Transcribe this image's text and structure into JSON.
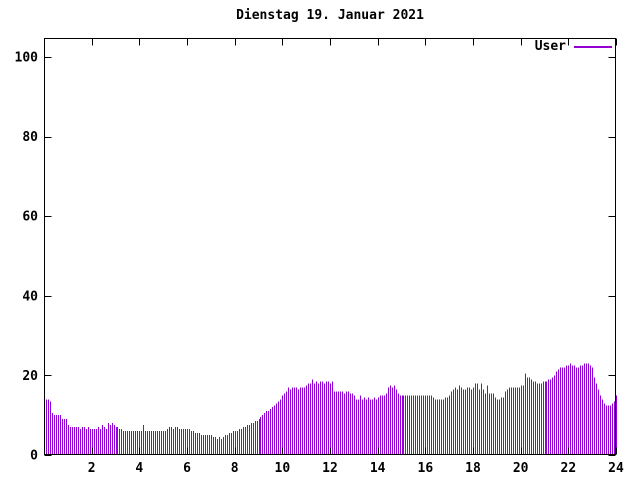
{
  "window": {
    "background": "#ffffff"
  },
  "chart_data": {
    "type": "bar",
    "style": "impulses",
    "title": "Dienstag 19. Januar 2021",
    "xlabel": "",
    "ylabel": "",
    "xlim": [
      0,
      24
    ],
    "ylim": [
      0,
      104.8
    ],
    "xticks": [
      2,
      4,
      6,
      8,
      10,
      12,
      14,
      16,
      18,
      20,
      22,
      24
    ],
    "yticks": [
      0,
      20,
      40,
      60,
      80,
      100
    ],
    "grid": false,
    "legend_position": "top-right",
    "axis_color": "#000000",
    "background_color": "#ffffff",
    "series": [
      {
        "name": "User",
        "color": "#9400d3",
        "x_start_minutes": 5,
        "x_interval_minutes": 5,
        "values": [
          14,
          14,
          13.5,
          10.5,
          10,
          10,
          10,
          10,
          9,
          9,
          9,
          7.5,
          7,
          7,
          7,
          7,
          7,
          6.5,
          7,
          7,
          6.5,
          7,
          6.5,
          6.5,
          6.5,
          6.5,
          7,
          6.5,
          7.5,
          7,
          6.5,
          8,
          7.5,
          8,
          7.5,
          7,
          7,
          6.5,
          6.5,
          6,
          6,
          6,
          6,
          6,
          6,
          6,
          6,
          6,
          6,
          7.5,
          6,
          6,
          6,
          6,
          6,
          6,
          6,
          6,
          6,
          6,
          6,
          6.5,
          7,
          7,
          6.5,
          7,
          7,
          6.5,
          6.5,
          6.5,
          6.5,
          6.5,
          6.5,
          6,
          6,
          5.5,
          5.5,
          5.5,
          5,
          5,
          5,
          5,
          5,
          5,
          4.5,
          4.5,
          4,
          4.5,
          4,
          4.5,
          5,
          5,
          5.5,
          5.5,
          6,
          6,
          6,
          6.5,
          6.5,
          7,
          7,
          7.5,
          7.5,
          8,
          8,
          8.5,
          8.5,
          9,
          9.5,
          10,
          10.5,
          11,
          11,
          11.5,
          12,
          12.5,
          13,
          13.5,
          14,
          15,
          15.5,
          16,
          17,
          16.5,
          17,
          17,
          17,
          16.5,
          17,
          17,
          17,
          17.5,
          18,
          18,
          19,
          18,
          18.5,
          18,
          18.5,
          18.5,
          18,
          18.5,
          18.5,
          18,
          18.5,
          16,
          16,
          16,
          16,
          16,
          15.5,
          16,
          16,
          15.5,
          15.5,
          15,
          14,
          14,
          15,
          14,
          14.5,
          14,
          14.5,
          14,
          14,
          14.5,
          14,
          14.5,
          15,
          15,
          15,
          15.5,
          17,
          17.5,
          17,
          17.5,
          16.5,
          15.5,
          15,
          15,
          15,
          15,
          15,
          15,
          15,
          15,
          15,
          15,
          15,
          15,
          15,
          15,
          15,
          15,
          15,
          14.5,
          14,
          14,
          14,
          14,
          14,
          14.5,
          14.5,
          15,
          16,
          16.5,
          17,
          16.5,
          17.5,
          17,
          16.5,
          16.5,
          17,
          17,
          16.5,
          17,
          18,
          18,
          16.5,
          18,
          16.5,
          15.5,
          17.5,
          15.5,
          15.5,
          15.5,
          14.5,
          14,
          14,
          14.5,
          14.5,
          16,
          16.5,
          17,
          17,
          17,
          17,
          17,
          17,
          17.5,
          17.5,
          20.5,
          19.5,
          19.5,
          19,
          18.5,
          18.5,
          18,
          18,
          18,
          18.5,
          18.5,
          18.5,
          19,
          19,
          19.5,
          20,
          21,
          21.5,
          22,
          22,
          22,
          22.5,
          22.5,
          23,
          22.5,
          22.5,
          22,
          22,
          22.5,
          22.5,
          23,
          23,
          23,
          22.5,
          22,
          19.5,
          18,
          16.5,
          15,
          14,
          13,
          12.5,
          12.5,
          12.5,
          13,
          13.5,
          15
        ]
      }
    ]
  }
}
